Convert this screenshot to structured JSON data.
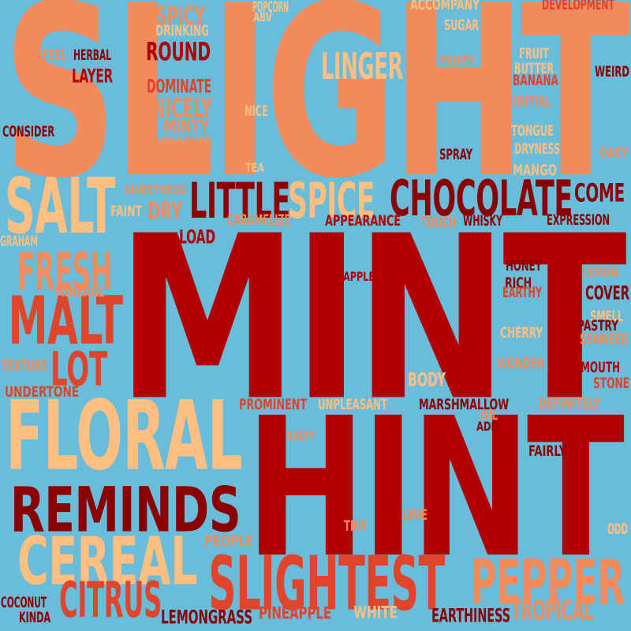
{
  "palette": {
    "background": "#6abcdb",
    "dark_red": "#8b0000",
    "red": "#b20000",
    "orange_red": "#e0442a",
    "salmon": "#f28a5c",
    "peach": "#ffbf80"
  },
  "words": [
    {
      "text": "SLIGHT",
      "color": "#f28a5c"
    },
    {
      "text": "MINT",
      "color": "#b20000"
    },
    {
      "text": "HINT",
      "color": "#b20000"
    },
    {
      "text": "FLORAL",
      "color": "#ffbf80"
    },
    {
      "text": "REMINDS",
      "color": "#8b0000"
    },
    {
      "text": "CEREAL",
      "color": "#ffbf80"
    },
    {
      "text": "SLIGHTEST",
      "color": "#e0442a"
    },
    {
      "text": "PEPPER",
      "color": "#f28a5c"
    },
    {
      "text": "SALT",
      "color": "#ffbf80"
    },
    {
      "text": "CHOCOLATE",
      "color": "#8b0000"
    },
    {
      "text": "MALT",
      "color": "#e0442a"
    },
    {
      "text": "LITTLE",
      "color": "#8b0000"
    },
    {
      "text": "SPICE",
      "color": "#ffbf80"
    },
    {
      "text": "FRESH",
      "color": "#f28a5c"
    },
    {
      "text": "LOT",
      "color": "#e0442a"
    },
    {
      "text": "CITRUS",
      "color": "#e0442a"
    },
    {
      "text": "LINGER",
      "color": "#ffbf80"
    },
    {
      "text": "ROUND",
      "color": "#b20000"
    },
    {
      "text": "SPICY",
      "color": "#f28a5c"
    },
    {
      "text": "NICELY",
      "color": "#f28a5c"
    },
    {
      "text": "MINTY",
      "color": "#f28a5c"
    },
    {
      "text": "DOMINATE",
      "color": "#e0442a"
    },
    {
      "text": "COME",
      "color": "#8b0000"
    },
    {
      "text": "TROPICAL",
      "color": "#f28a5c"
    },
    {
      "text": "DRY",
      "color": "#f28a5c"
    },
    {
      "text": "LAYER",
      "color": "#b20000"
    },
    {
      "text": "HERBAL",
      "color": "#8b0000"
    },
    {
      "text": "FEEL",
      "color": "#f28a5c"
    },
    {
      "text": "DRINKING",
      "color": "#ffbf80"
    },
    {
      "text": "POPCORN",
      "color": "#ffbf80"
    },
    {
      "text": "ABV",
      "color": "#ffbf80"
    },
    {
      "text": "ACCOMPANY",
      "color": "#ffbf80"
    },
    {
      "text": "DEVELOPMENT",
      "color": "#e0442a"
    },
    {
      "text": "SUGAR",
      "color": "#ffbf80"
    },
    {
      "text": "FRUITY",
      "color": "#f28a5c"
    },
    {
      "text": "FRUIT",
      "color": "#ffbf80"
    },
    {
      "text": "BUTTER",
      "color": "#ffbf80"
    },
    {
      "text": "BANANA",
      "color": "#e0442a"
    },
    {
      "text": "WEIRD",
      "color": "#8b0000"
    },
    {
      "text": "INITIAL",
      "color": "#f28a5c"
    },
    {
      "text": "NICE",
      "color": "#ffbf80"
    },
    {
      "text": "CONSIDER",
      "color": "#8b0000"
    },
    {
      "text": "CRACKER",
      "color": "#f28a5c"
    },
    {
      "text": "TONGUE",
      "color": "#ffbf80"
    },
    {
      "text": "DRYNESS",
      "color": "#ffbf80"
    },
    {
      "text": "SPRAY",
      "color": "#8b0000"
    },
    {
      "text": "OAKY",
      "color": "#f28a5c"
    },
    {
      "text": "MANGO",
      "color": "#ffbf80"
    },
    {
      "text": "TEA",
      "color": "#ffbf80"
    },
    {
      "text": "SWEETNESS",
      "color": "#f28a5c"
    },
    {
      "text": "FAINT",
      "color": "#ffbf80"
    },
    {
      "text": "CARAMELIZE",
      "color": "#f28a5c"
    },
    {
      "text": "APPEARANCE",
      "color": "#b20000"
    },
    {
      "text": "TOUCH",
      "color": "#f28a5c"
    },
    {
      "text": "WHISKY",
      "color": "#8b0000"
    },
    {
      "text": "EXPRESSION",
      "color": "#8b0000"
    },
    {
      "text": "GRAHAM",
      "color": "#ffbf80"
    },
    {
      "text": "LOAD",
      "color": "#b20000"
    },
    {
      "text": "HONEY",
      "color": "#8b0000"
    },
    {
      "text": "LEMON",
      "color": "#f28a5c"
    },
    {
      "text": "APPLE",
      "color": "#b20000"
    },
    {
      "text": "RICH",
      "color": "#8b0000"
    },
    {
      "text": "EARTHY",
      "color": "#e0442a"
    },
    {
      "text": "COVER",
      "color": "#8b0000"
    },
    {
      "text": "MINERAL",
      "color": "#f28a5c"
    },
    {
      "text": "SMELL",
      "color": "#ffbf80"
    },
    {
      "text": "PASTRY",
      "color": "#8b0000"
    },
    {
      "text": "CHERRY",
      "color": "#ffbf80"
    },
    {
      "text": "SEAWEED",
      "color": "#f28a5c"
    },
    {
      "text": "TEXTURE",
      "color": "#f28a5c"
    },
    {
      "text": "WONDER",
      "color": "#f28a5c"
    },
    {
      "text": "MOUTH",
      "color": "#b20000"
    },
    {
      "text": "UNDERTONE",
      "color": "#e0442a"
    },
    {
      "text": "BODY",
      "color": "#ffbf80"
    },
    {
      "text": "STONE",
      "color": "#e0442a"
    },
    {
      "text": "PROMINENT",
      "color": "#e0442a"
    },
    {
      "text": "UNPLEASANT",
      "color": "#ffbf80"
    },
    {
      "text": "MARSHMALLOW",
      "color": "#8b0000"
    },
    {
      "text": "DEFINITELY",
      "color": "#f28a5c"
    },
    {
      "text": "OIL",
      "color": "#f28a5c"
    },
    {
      "text": "ADD",
      "color": "#8b0000"
    },
    {
      "text": "SALTY",
      "color": "#f28a5c"
    },
    {
      "text": "FAIRLY",
      "color": "#8b0000"
    },
    {
      "text": "LIME",
      "color": "#f28a5c"
    },
    {
      "text": "TINY",
      "color": "#f28a5c"
    },
    {
      "text": "PEOPLE",
      "color": "#f28a5c"
    },
    {
      "text": "ODD",
      "color": "#ffbf80"
    },
    {
      "text": "COCONUT",
      "color": "#8b0000"
    },
    {
      "text": "KINDA",
      "color": "#8b0000"
    },
    {
      "text": "LEMONGRASS",
      "color": "#8b0000"
    },
    {
      "text": "PINEAPPLE",
      "color": "#e0442a"
    },
    {
      "text": "WHITE",
      "color": "#ffbf80"
    },
    {
      "text": "EARTHINESS",
      "color": "#8b0000"
    }
  ]
}
